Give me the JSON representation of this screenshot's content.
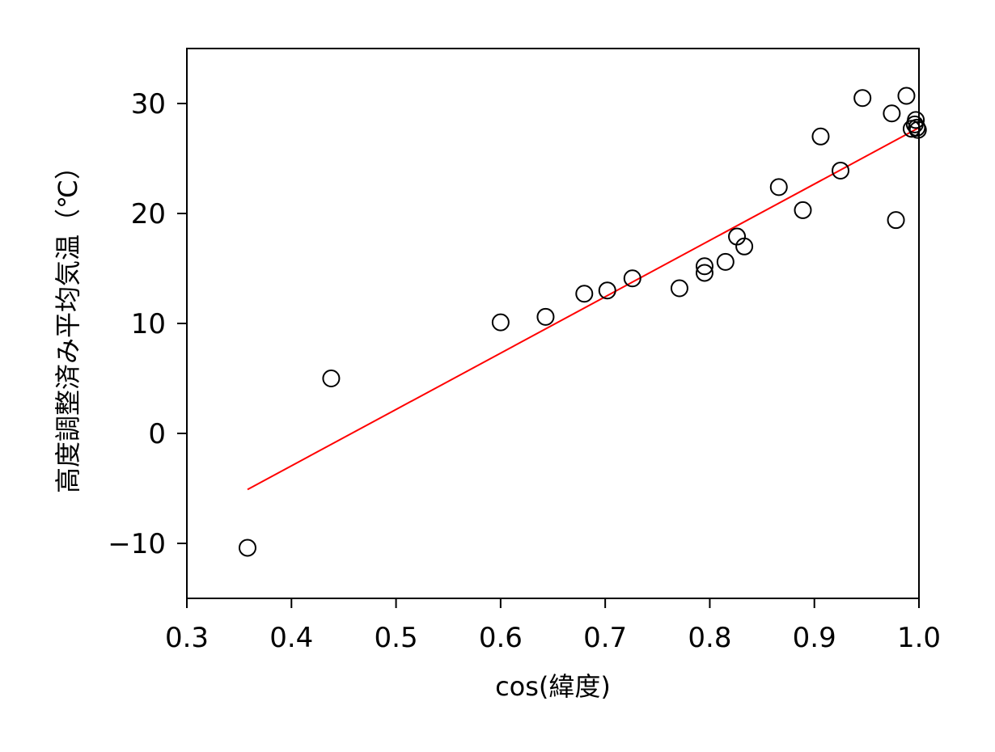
{
  "chart_data": {
    "type": "scatter",
    "xlabel": "cos(緯度)",
    "ylabel": "高度調整済み平均気温（℃）",
    "xlim": [
      0.3,
      1.0
    ],
    "ylim": [
      -15,
      35
    ],
    "xticks": [
      0.3,
      0.4,
      0.5,
      0.6,
      0.7,
      0.8,
      0.9,
      1.0
    ],
    "xtick_labels": [
      "0.3",
      "0.4",
      "0.5",
      "0.6",
      "0.7",
      "0.8",
      "0.9",
      "1.0"
    ],
    "yticks": [
      -10,
      0,
      10,
      20,
      30
    ],
    "ytick_labels": [
      "−10",
      "0",
      "10",
      "20",
      "30"
    ],
    "grid": false,
    "points": [
      {
        "x": 0.358,
        "y": -10.4
      },
      {
        "x": 0.438,
        "y": 5.0
      },
      {
        "x": 0.6,
        "y": 10.1
      },
      {
        "x": 0.643,
        "y": 10.6
      },
      {
        "x": 0.68,
        "y": 12.7
      },
      {
        "x": 0.702,
        "y": 13.0
      },
      {
        "x": 0.726,
        "y": 14.1
      },
      {
        "x": 0.771,
        "y": 13.2
      },
      {
        "x": 0.795,
        "y": 14.6
      },
      {
        "x": 0.795,
        "y": 15.2
      },
      {
        "x": 0.815,
        "y": 15.6
      },
      {
        "x": 0.826,
        "y": 17.9
      },
      {
        "x": 0.833,
        "y": 17.0
      },
      {
        "x": 0.866,
        "y": 22.4
      },
      {
        "x": 0.889,
        "y": 20.3
      },
      {
        "x": 0.906,
        "y": 27.0
      },
      {
        "x": 0.925,
        "y": 23.9
      },
      {
        "x": 0.946,
        "y": 30.5
      },
      {
        "x": 0.974,
        "y": 29.1
      },
      {
        "x": 0.978,
        "y": 19.4
      },
      {
        "x": 0.988,
        "y": 30.7
      },
      {
        "x": 0.993,
        "y": 27.7
      },
      {
        "x": 0.996,
        "y": 28.1
      },
      {
        "x": 0.997,
        "y": 28.5
      },
      {
        "x": 0.998,
        "y": 27.8
      },
      {
        "x": 0.999,
        "y": 27.6
      }
    ],
    "fit_line": {
      "x": [
        0.358,
        1.0
      ],
      "y": [
        -5.1,
        27.8
      ]
    },
    "colors": {
      "points": "#000000",
      "fit_line": "#ff0000"
    }
  }
}
